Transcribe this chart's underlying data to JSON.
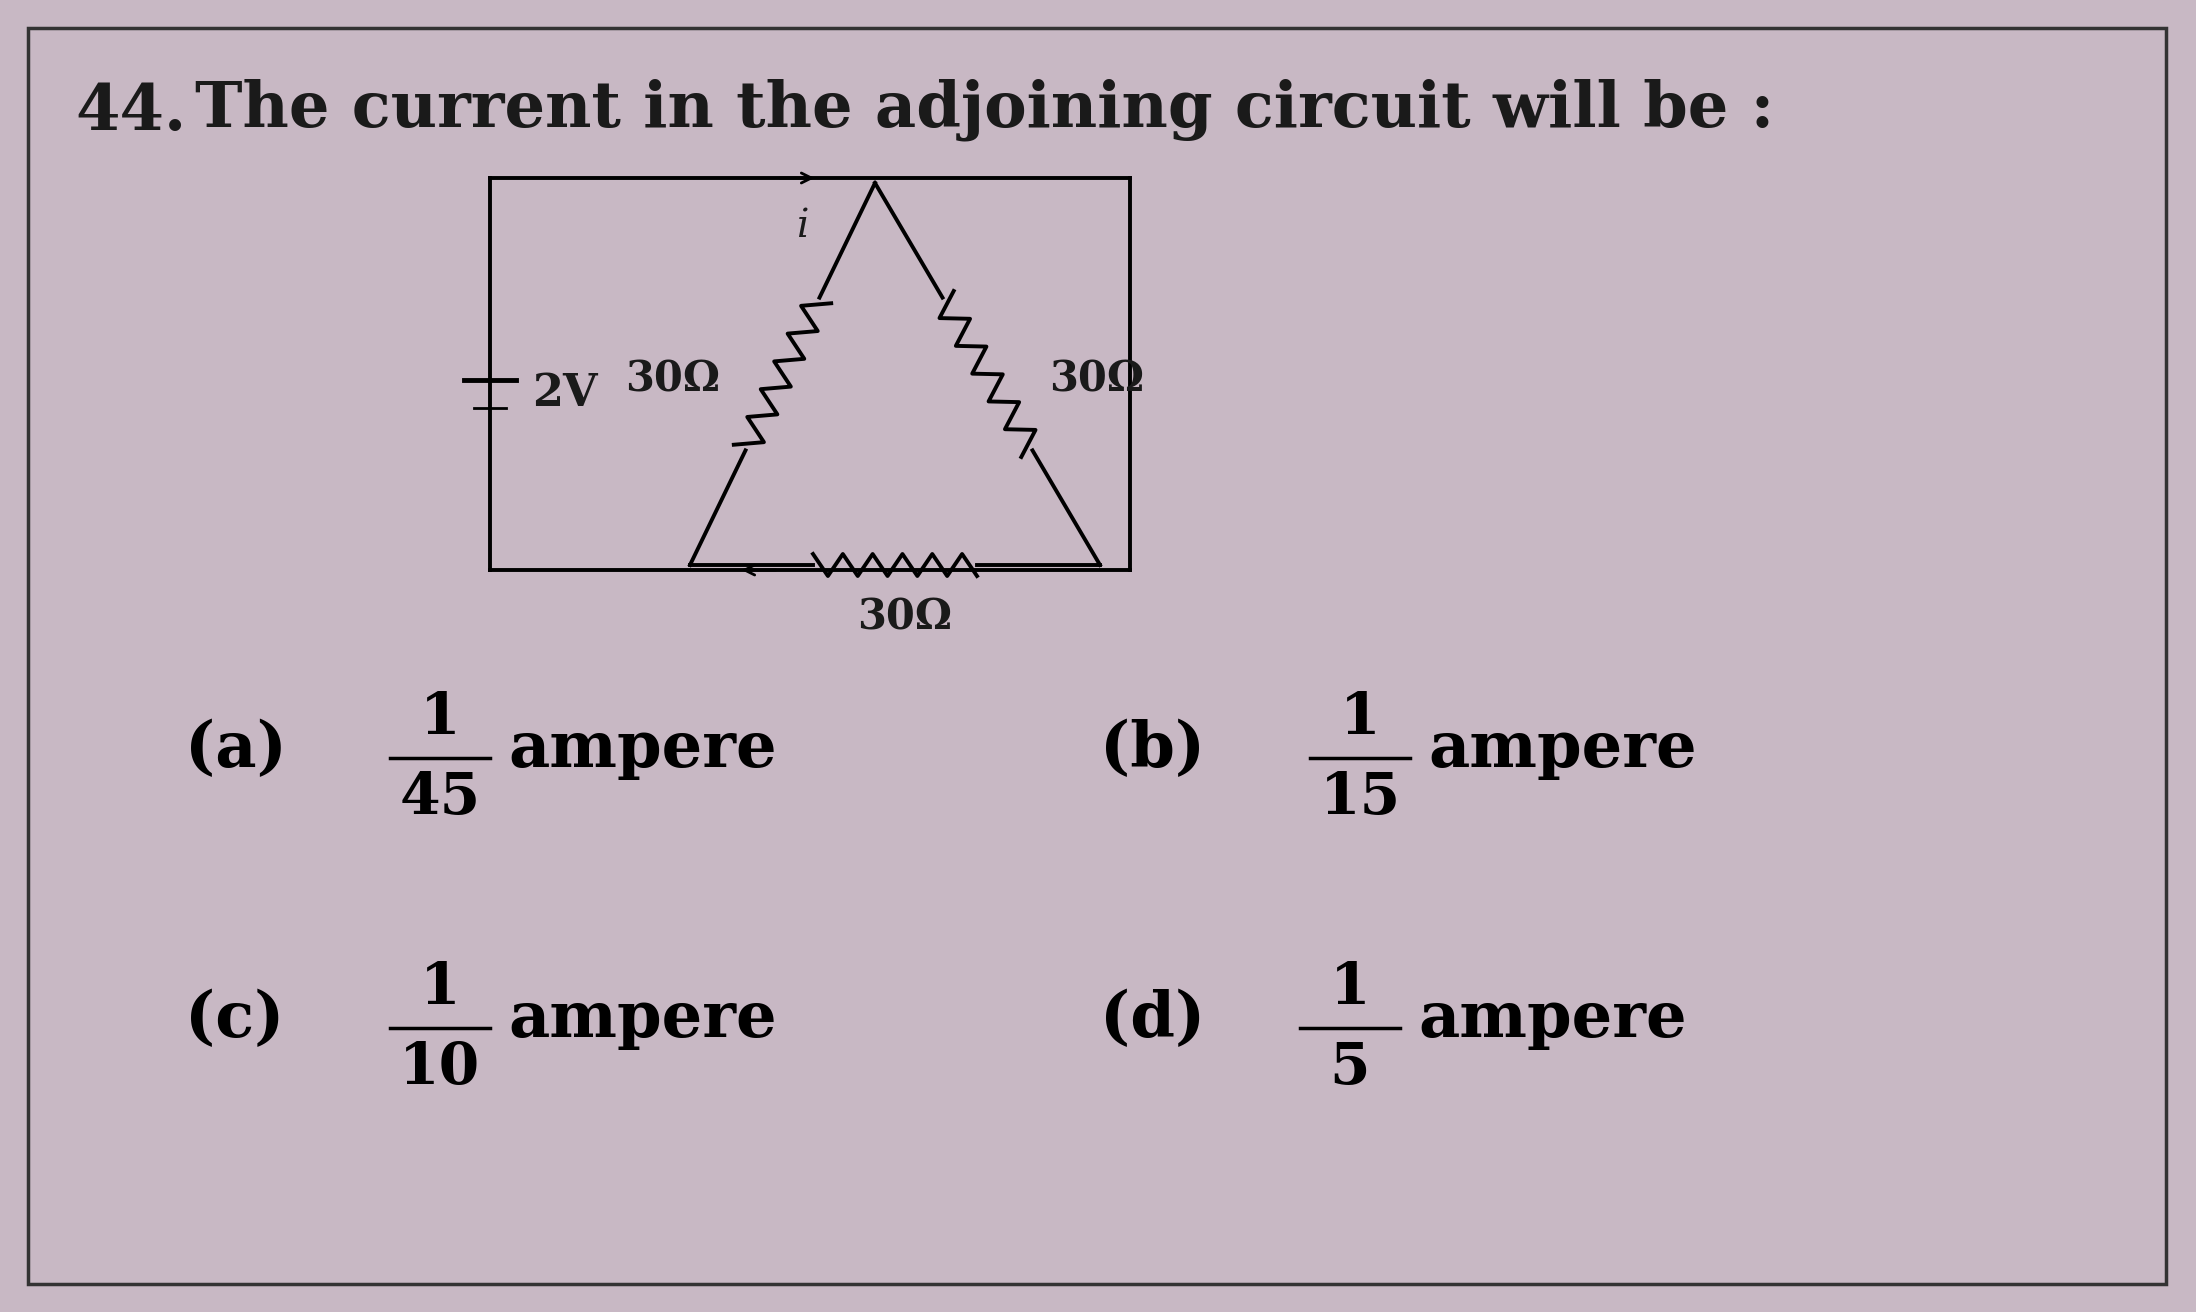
{
  "title_num": "44.",
  "title_text": "The current in the adjoining circuit will be :",
  "bg_color": "#c8b8c4",
  "text_color": "#1a1a1a",
  "battery_label": "2V",
  "resistor_labels": [
    "30Ω",
    "30Ω",
    "30Ω"
  ],
  "current_label": "i",
  "options": [
    {
      "label": "(a)",
      "num": "1",
      "den": "45"
    },
    {
      "label": "(b)",
      "num": "1",
      "den": "15"
    },
    {
      "label": "(c)",
      "num": "1",
      "den": "10"
    },
    {
      "label": "(d)",
      "num": "1",
      "den": "5"
    }
  ]
}
